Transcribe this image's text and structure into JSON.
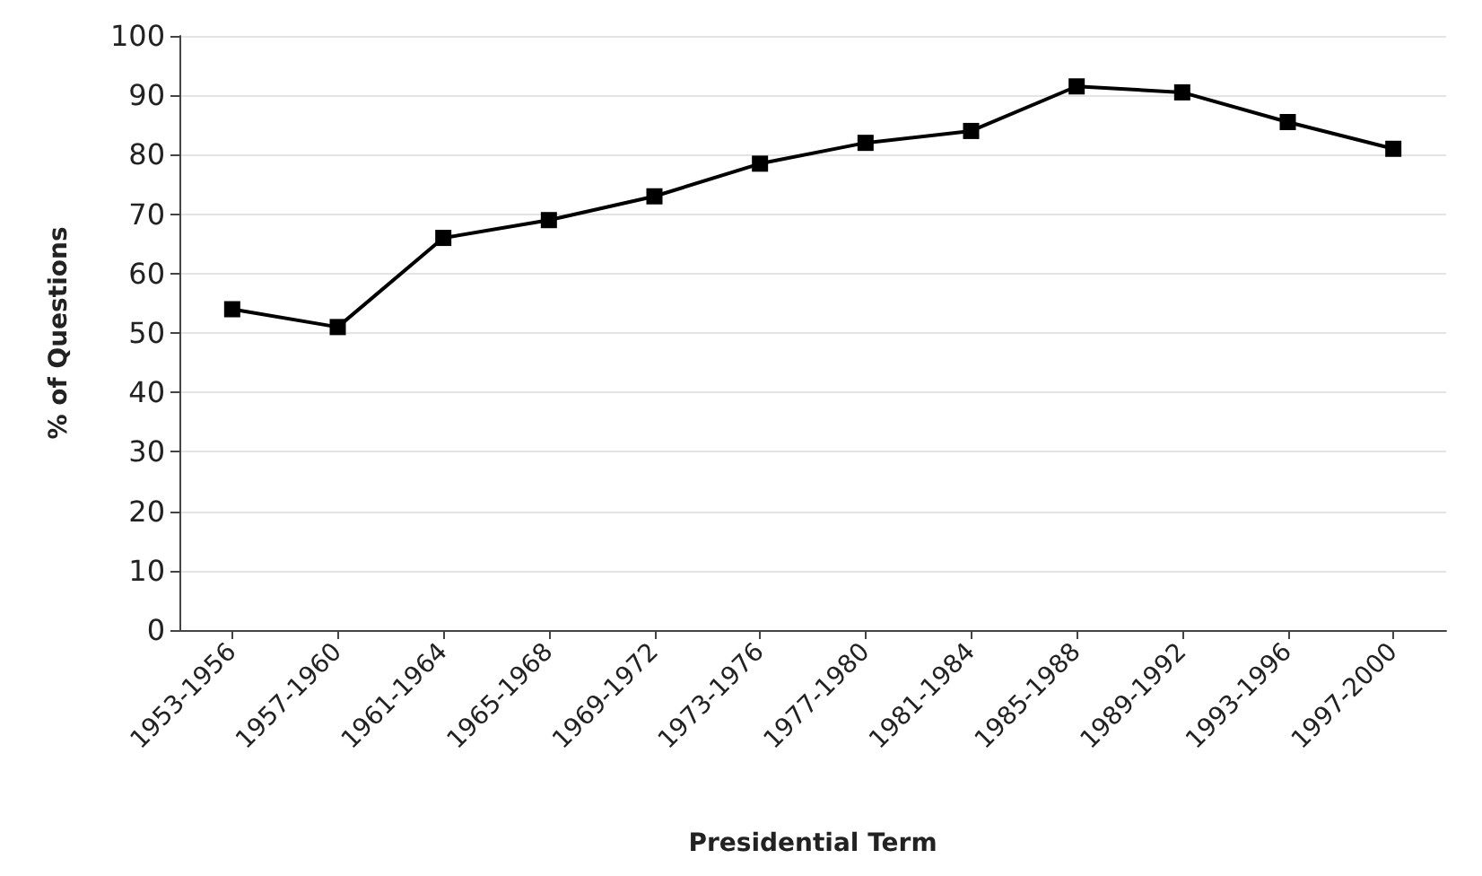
{
  "chart_data": {
    "type": "line",
    "xlabel": "Presidential Term",
    "ylabel": "% of Questions",
    "categories": [
      "1953-1956",
      "1957-1960",
      "1961-1964",
      "1965-1968",
      "1969-1972",
      "1973-1976",
      "1977-1980",
      "1981-1984",
      "1985-1988",
      "1989-1992",
      "1993-1996",
      "1997-2000"
    ],
    "series": [
      {
        "color": "#000000",
        "values": [
          54,
          51,
          66,
          69,
          73,
          78.5,
          82,
          84,
          91.5,
          90.5,
          85.5,
          81
        ]
      }
    ],
    "ylim": [
      0,
      100
    ],
    "yticks": [
      0,
      10,
      20,
      30,
      40,
      50,
      60,
      70,
      80,
      90,
      100
    ],
    "grid": "y",
    "marker": "square",
    "line_style": "solid"
  }
}
